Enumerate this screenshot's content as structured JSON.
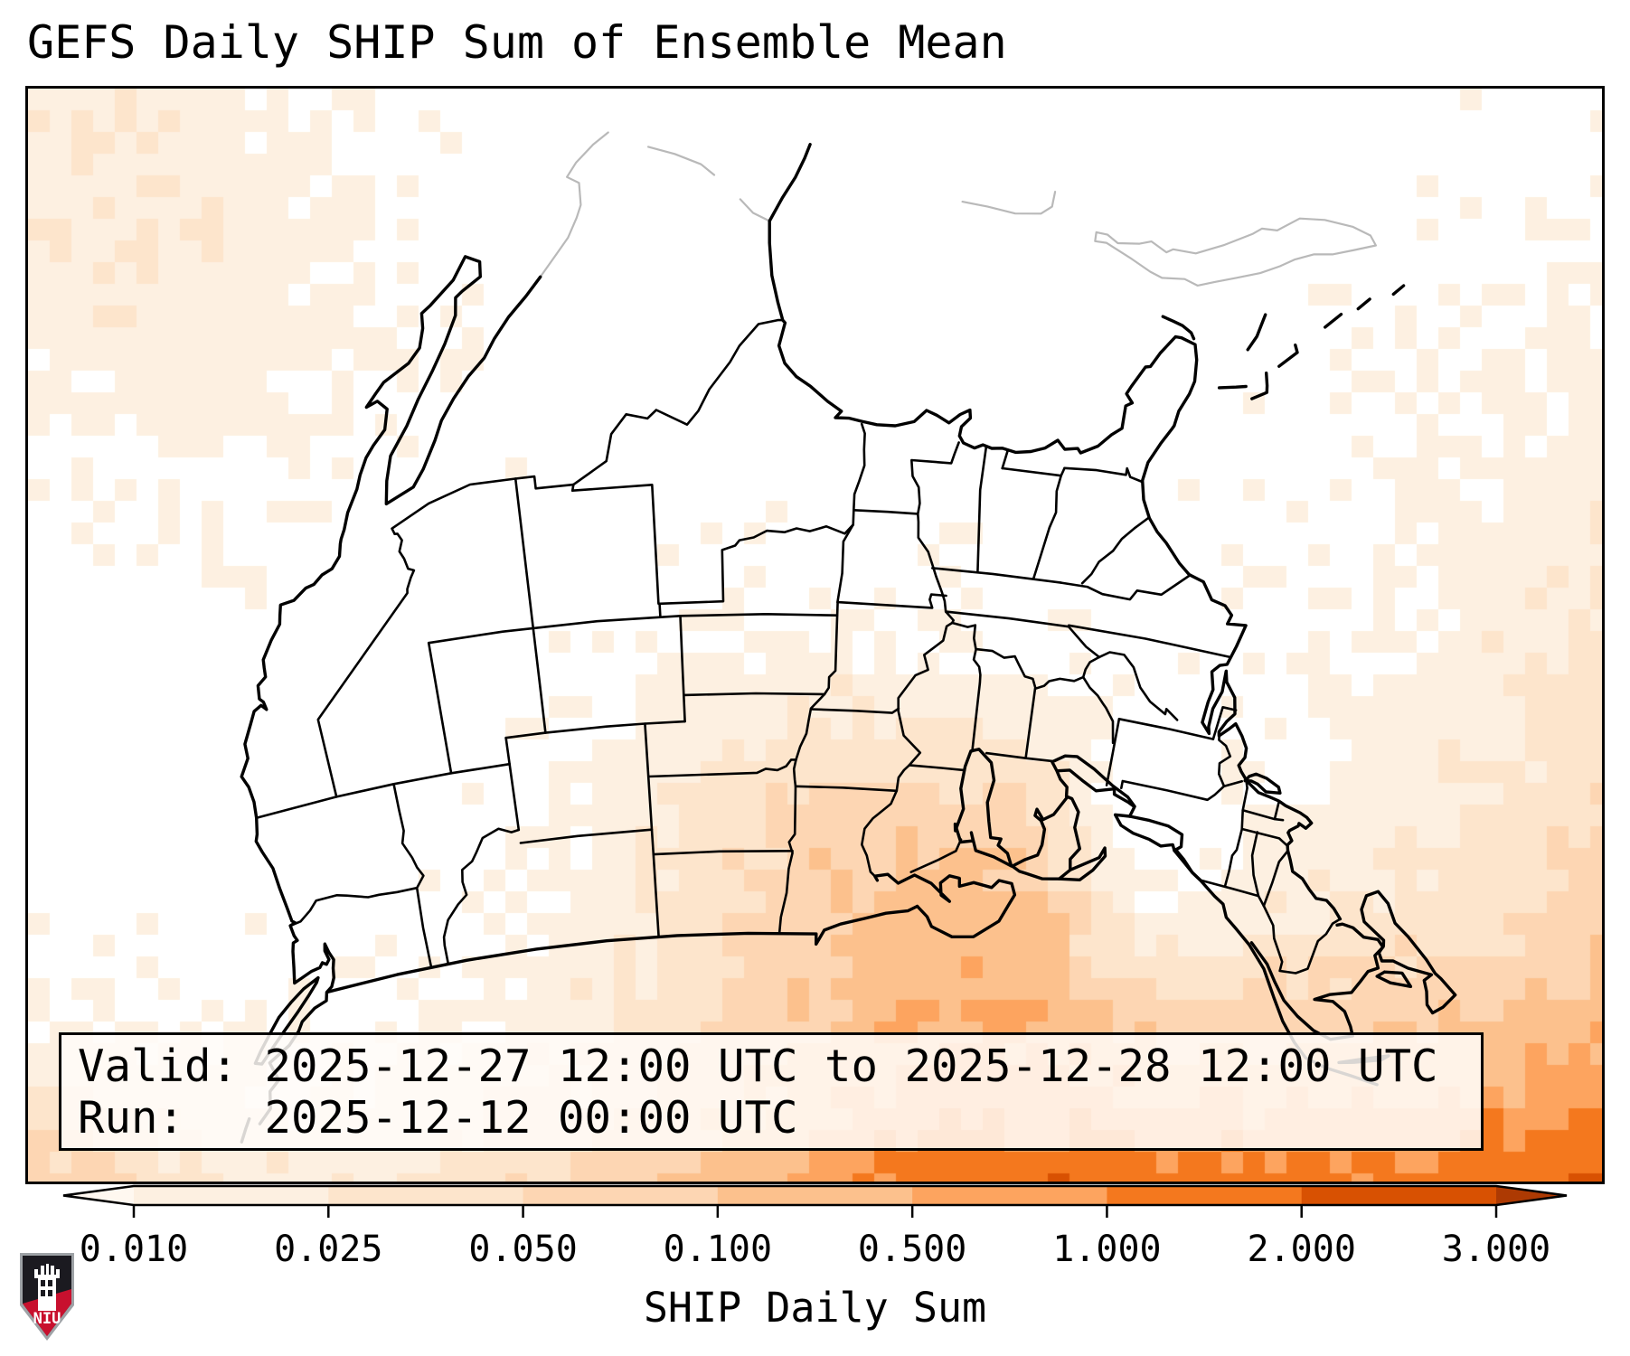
{
  "title": "GEFS Daily SHIP Sum of Ensemble Mean",
  "info_box": {
    "valid_line": "Valid: 2025-12-27 12:00 UTC to 2025-12-28 12:00 UTC",
    "run_line": "Run:   2025-12-12 00:00 UTC"
  },
  "colorbar": {
    "label": "SHIP Daily Sum",
    "levels": [
      0.01,
      0.025,
      0.05,
      0.1,
      0.5,
      1.0,
      2.0,
      3.0
    ],
    "tick_labels": [
      "0.010",
      "0.025",
      "0.050",
      "0.100",
      "0.500",
      "1.000",
      "2.000",
      "3.000"
    ],
    "segment_colors": [
      "#fdf0e1",
      "#fde5cc",
      "#fdd6b3",
      "#fcc18d",
      "#fda45f",
      "#f4781e",
      "#d85102"
    ],
    "under_color": "#fff8f0",
    "over_color": "#ad3a03"
  },
  "map": {
    "background": "#ffffff",
    "coast_color": "#000000",
    "state_color": "#000000",
    "foreign_color": "#b9b9b9"
  },
  "logo": {
    "text": "NIU",
    "shield_dark": "#1b1a20",
    "shield_red": "#c8102e",
    "border_gray": "#9ea2a6"
  }
}
